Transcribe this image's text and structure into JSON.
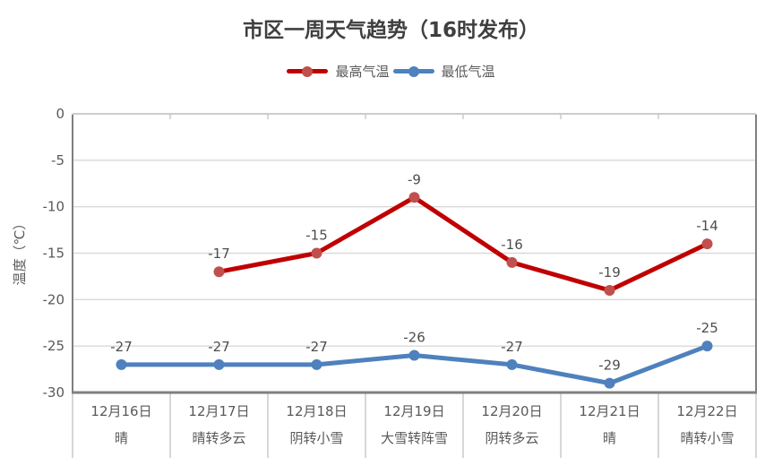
{
  "title": "市区一周天气趋势（16时发布）",
  "y_axis_title": "温度（℃）",
  "chart_data": {
    "type": "line",
    "categories": [
      {
        "date": "12月16日",
        "weather": "晴"
      },
      {
        "date": "12月17日",
        "weather": "晴转多云"
      },
      {
        "date": "12月18日",
        "weather": "阴转小雪"
      },
      {
        "date": "12月19日",
        "weather": "大雪转阵雪"
      },
      {
        "date": "12月20日",
        "weather": "阴转多云"
      },
      {
        "date": "12月21日",
        "weather": "晴"
      },
      {
        "date": "12月22日",
        "weather": "晴转小雪"
      }
    ],
    "series": [
      {
        "id": "max-temp",
        "name": "最高气温",
        "color": "#C00000",
        "marker_color": "#C0504D",
        "values": [
          null,
          -17,
          -15,
          -9,
          -16,
          -19,
          -14
        ]
      },
      {
        "id": "min-temp",
        "name": "最低气温",
        "color": "#4E81BD",
        "marker_color": "#4E81BD",
        "values": [
          -27,
          -27,
          -27,
          -26,
          -27,
          -29,
          -25
        ]
      }
    ],
    "title": "市区一周天气趋势（16时发布）",
    "ylabel": "温度（℃）",
    "ylim": [
      -30,
      0
    ],
    "yticks": [
      0,
      -5,
      -10,
      -15,
      -20,
      -25,
      -30
    ],
    "grid": true,
    "legend_position": "top",
    "data_labels": true
  },
  "colors": {
    "gridline": "#D9D9D9",
    "category_axis": "#C6C6C6",
    "plot_border": "#7F7F7F",
    "separator": "#C6C6C6",
    "text": "#595959",
    "title_text": "#3F3F3F"
  }
}
